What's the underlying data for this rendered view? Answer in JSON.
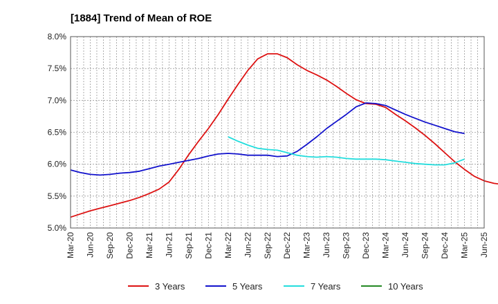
{
  "chart_data": {
    "type": "line",
    "title": "[1884]  Trend of Mean of ROE",
    "xlabel": "",
    "ylabel": "",
    "ylim": [
      5.0,
      8.0
    ],
    "y_ticks": [
      "5.0%",
      "5.5%",
      "6.0%",
      "6.5%",
      "7.0%",
      "7.5%",
      "8.0%"
    ],
    "x_ticks": [
      "Mar-20",
      "Jun-20",
      "Sep-20",
      "Dec-20",
      "Mar-21",
      "Jun-21",
      "Sep-21",
      "Dec-21",
      "Mar-22",
      "Jun-22",
      "Sep-22",
      "Dec-22",
      "Mar-23",
      "Jun-23",
      "Sep-23",
      "Dec-23",
      "Mar-24",
      "Jun-24",
      "Sep-24",
      "Dec-24",
      "Mar-25",
      "Jun-25"
    ],
    "grid": true,
    "legend_position": "bottom",
    "series": [
      {
        "name": "3 Years",
        "color": "#dd1111",
        "x_start": "Mar-20",
        "values": [
          5.17,
          5.22,
          5.27,
          5.31,
          5.35,
          5.39,
          5.43,
          5.48,
          5.54,
          5.61,
          5.72,
          5.92,
          6.15,
          6.36,
          6.56,
          6.78,
          7.02,
          7.25,
          7.47,
          7.65,
          7.73,
          7.73,
          7.67,
          7.56,
          7.47,
          7.4,
          7.32,
          7.22,
          7.11,
          7.01,
          6.95,
          6.94,
          6.89,
          6.78,
          6.68,
          6.57,
          6.45,
          6.32,
          6.18,
          6.04,
          5.92,
          5.81,
          5.74,
          5.7,
          5.68,
          5.68
        ]
      },
      {
        "name": "5 Years",
        "color": "#1111cc",
        "x_start": "Mar-20",
        "values": [
          5.91,
          5.87,
          5.84,
          5.83,
          5.84,
          5.86,
          5.87,
          5.89,
          5.93,
          5.97,
          6.0,
          6.03,
          6.06,
          6.09,
          6.13,
          6.16,
          6.17,
          6.16,
          6.14,
          6.14,
          6.14,
          6.12,
          6.13,
          6.2,
          6.31,
          6.43,
          6.56,
          6.67,
          6.78,
          6.9,
          6.96,
          6.95,
          6.92,
          6.85,
          6.78,
          6.72,
          6.66,
          6.61,
          6.56,
          6.51,
          6.48
        ]
      },
      {
        "name": "7 Years",
        "color": "#22dddd",
        "x_start": "Mar-22",
        "values": [
          6.43,
          6.36,
          6.3,
          6.25,
          6.23,
          6.22,
          6.18,
          6.14,
          6.12,
          6.11,
          6.12,
          6.11,
          6.09,
          6.08,
          6.08,
          6.08,
          6.07,
          6.05,
          6.03,
          6.01,
          6.0,
          5.99,
          5.99,
          6.02,
          6.08
        ]
      },
      {
        "name": "10 Years",
        "color": "#228822",
        "x_start": "Mar-20",
        "values": []
      }
    ]
  }
}
